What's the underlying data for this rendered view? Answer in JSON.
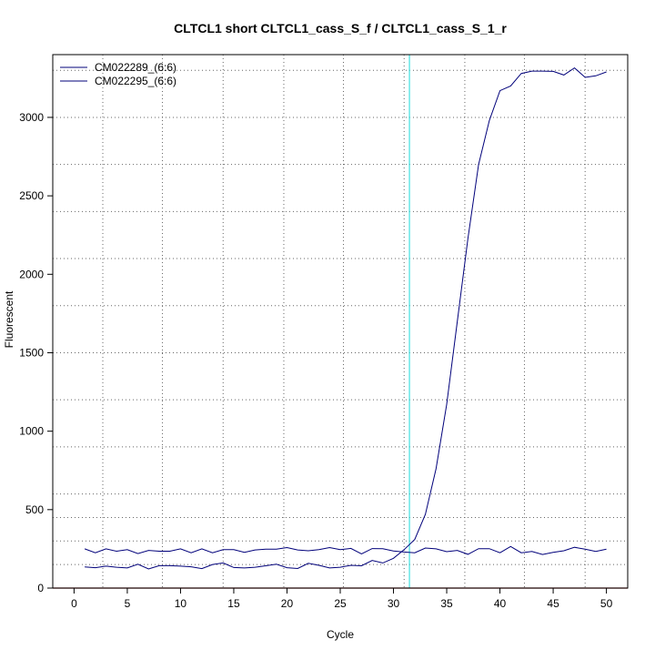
{
  "chart_data": {
    "type": "line",
    "title": "CLTCL1 short CLTCL1_cass_S_f / CLTCL1_cass_S_1_r",
    "xlabel": "Cycle",
    "ylabel": "Fluorescent",
    "xlim": [
      -2,
      52
    ],
    "ylim": [
      0,
      3400
    ],
    "x_ticks": [
      0,
      5,
      10,
      15,
      20,
      25,
      30,
      35,
      40,
      45,
      50
    ],
    "y_ticks": [
      0,
      500,
      1000,
      1500,
      2000,
      2500,
      3000
    ],
    "x_gridlines": [
      2.7,
      8.3,
      14,
      19.7,
      25.3,
      31,
      36.7,
      42.3,
      48
    ],
    "y_gridlines": [
      150,
      300,
      450,
      600,
      900,
      1200,
      1500,
      1800,
      2100,
      2400,
      2700,
      3000,
      3300
    ],
    "grid": true,
    "legend_position": "top-left",
    "threshold_cycle": 31.5,
    "colors": {
      "series": "#00007a",
      "threshold": "#40e0e0",
      "baseline": "#8b0000",
      "grid": "#666666",
      "axis": "#000000"
    },
    "series": [
      {
        "name": "CM022289_(6:6)",
        "x": [
          1,
          2,
          3,
          4,
          5,
          6,
          7,
          8,
          9,
          10,
          11,
          12,
          13,
          14,
          15,
          16,
          17,
          18,
          19,
          20,
          21,
          22,
          23,
          24,
          25,
          26,
          27,
          28,
          29,
          30,
          31,
          32,
          33,
          34,
          35,
          36,
          37,
          38,
          39,
          40,
          41,
          42,
          43,
          44,
          45,
          46,
          47,
          48,
          49,
          50
        ],
        "values": [
          250,
          225,
          250,
          235,
          245,
          220,
          240,
          235,
          235,
          250,
          225,
          250,
          225,
          245,
          245,
          228,
          243,
          248,
          248,
          258,
          243,
          238,
          245,
          258,
          245,
          253,
          218,
          252,
          251,
          236,
          230,
          225,
          255,
          250,
          232,
          240,
          215,
          251,
          251,
          225,
          265,
          225,
          233,
          214,
          228,
          238,
          260,
          248,
          234,
          248
        ]
      },
      {
        "name": "CM022295_(6:6)",
        "x": [
          1,
          2,
          3,
          4,
          5,
          6,
          7,
          8,
          9,
          10,
          11,
          12,
          13,
          14,
          15,
          16,
          17,
          18,
          19,
          20,
          21,
          22,
          23,
          24,
          25,
          26,
          27,
          28,
          29,
          30,
          31,
          32,
          33,
          34,
          35,
          36,
          37,
          38,
          39,
          40,
          41,
          42,
          43,
          44,
          45,
          46,
          47,
          48,
          49,
          50
        ],
        "values": [
          135,
          130,
          140,
          133,
          128,
          152,
          122,
          143,
          143,
          140,
          136,
          124,
          150,
          160,
          131,
          128,
          133,
          142,
          152,
          130,
          125,
          158,
          145,
          128,
          133,
          145,
          142,
          176,
          160,
          190,
          245,
          310,
          470,
          760,
          1170,
          1700,
          2230,
          2700,
          2980,
          3170,
          3200,
          3280,
          3295,
          3295,
          3293,
          3270,
          3315,
          3255,
          3265,
          3290
        ]
      }
    ]
  }
}
